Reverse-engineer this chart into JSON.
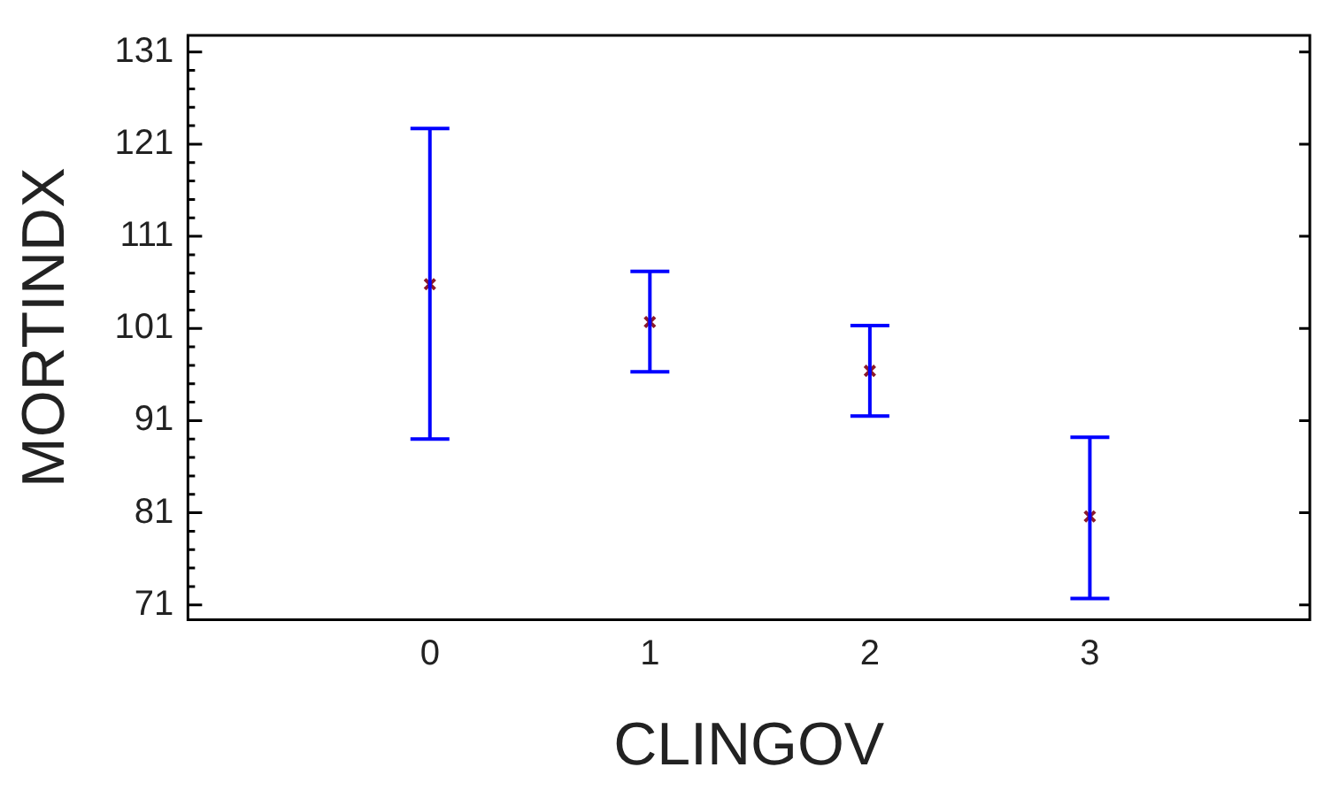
{
  "chart_data": {
    "type": "scatter",
    "xlabel": "CLINGOV",
    "ylabel": "MORTINDX",
    "x": [
      0,
      1,
      2,
      3
    ],
    "series": [
      {
        "color": "#8b1a2a",
        "values": [
          105.8,
          101.7,
          96.4,
          80.6
        ],
        "errors": [
          [
            89.0,
            122.7
          ],
          [
            96.3,
            107.2
          ],
          [
            91.5,
            101.3
          ],
          [
            71.7,
            89.2
          ]
        ]
      }
    ],
    "xlim": [
      -1.1,
      4
    ],
    "xticks": [
      0,
      1,
      2,
      3
    ],
    "ylim": [
      69.4,
      132.8
    ],
    "yticks": [
      71,
      81,
      91,
      101,
      111,
      121,
      131
    ],
    "marker": "cross",
    "grid": false,
    "legend": false
  }
}
